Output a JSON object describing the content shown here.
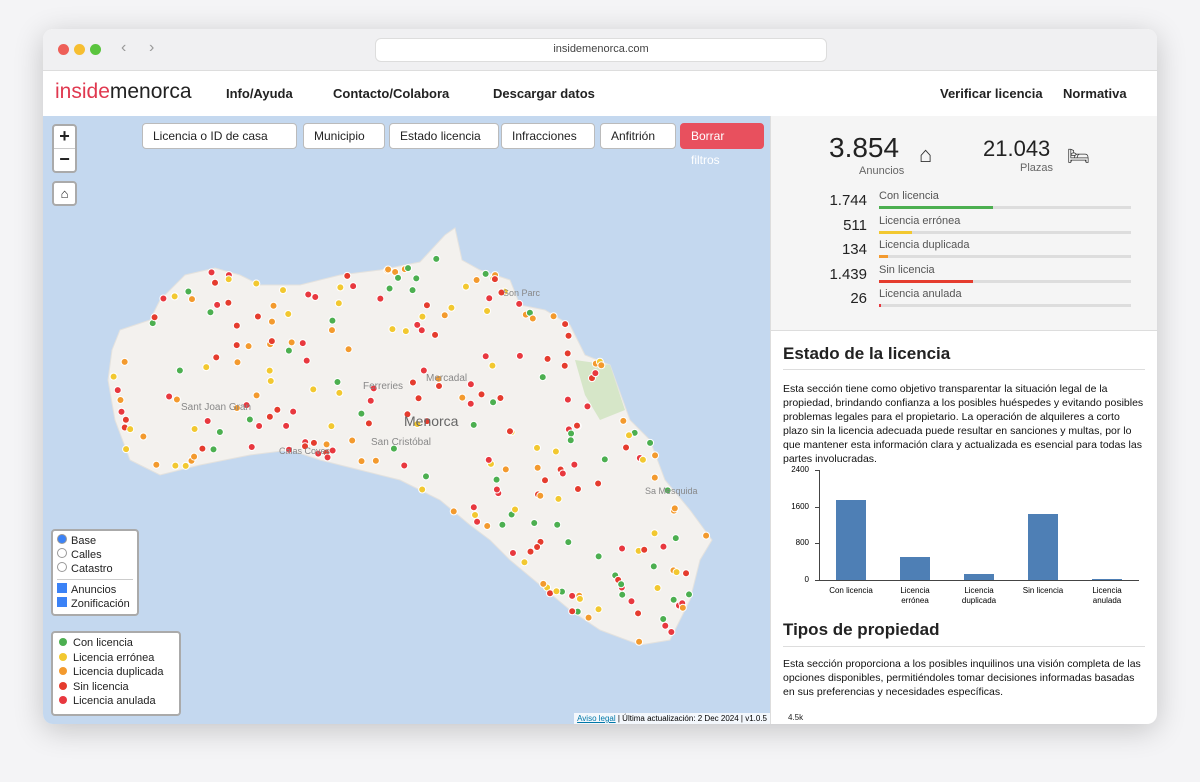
{
  "browser": {
    "url": "insidemenorca.com"
  },
  "nav": {
    "logo_a": "inside",
    "logo_b": "menorca",
    "links": [
      "Info/Ayuda",
      "Contacto/Colabora",
      "Descargar datos"
    ],
    "right_links": [
      "Verificar licencia",
      "Normativa"
    ]
  },
  "filters": {
    "search": "Licencia o ID de casa",
    "dropdowns": [
      "Municipio",
      "Estado licencia",
      "Infracciones",
      "Anfitrión"
    ],
    "clear": "Borrar filtros"
  },
  "map": {
    "zoom_in": "+",
    "zoom_out": "−",
    "places": [
      "Menorca",
      "Ferreries",
      "Mercadal",
      "Sant Joan Gran",
      "San Cristóbal",
      "Calas Coves",
      "Sa Mesquida",
      "Son Parc"
    ],
    "layers": {
      "base": [
        "Base",
        "Calles",
        "Catastro"
      ],
      "overlays": [
        "Anuncios",
        "Zonificación"
      ]
    },
    "legend": [
      {
        "label": "Con licencia",
        "color": "#4caf50"
      },
      {
        "label": "Licencia errónea",
        "color": "#f2c830"
      },
      {
        "label": "Licencia duplicada",
        "color": "#f39a2e"
      },
      {
        "label": "Sin licencia",
        "color": "#e53c2e"
      },
      {
        "label": "Licencia anulada",
        "color": "#e8383f"
      }
    ],
    "footer_link": "Aviso legal",
    "footer": "| Última actualización: 2 Dec 2024 | v1.0.5"
  },
  "stats": {
    "listings": {
      "value": 3854,
      "label": "3.854"
    },
    "listings_label": "Anuncios",
    "beds": {
      "value": 21043,
      "label": "21.043"
    },
    "beds_label": "Plazas",
    "rows": [
      {
        "value": {
          "value": 1744,
          "label": "1.744"
        },
        "name": "Con licencia",
        "color": "#4caf50"
      },
      {
        "value": 511,
        "name": "Licencia errónea",
        "color": "#f2c830"
      },
      {
        "value": 134,
        "name": "Licencia duplicada",
        "color": "#f39a2e"
      },
      {
        "value": {
          "value": 1439,
          "label": "1.439"
        },
        "name": "Sin licencia",
        "color": "#e53c2e"
      },
      {
        "value": 26,
        "name": "Licencia anulada",
        "color": "#e8383f"
      }
    ]
  },
  "section1": {
    "title": "Estado de la licencia",
    "text": "Esta sección tiene como objetivo transparentar la situación legal de la propiedad, brindando confianza a los posibles huéspedes y evitando posibles problemas legales para el propietario. La operación de alquileres a corto plazo sin la licencia adecuada puede resultar en sanciones y multas, por lo que mantener esta información clara y actualizada es esencial para todas las partes involucradas."
  },
  "status_chart": {
    "type": "bar",
    "categories": [
      "Con licencia",
      "Licencia errónea",
      "Licencia duplicada",
      "Sin licencia",
      "Licencia anulada"
    ],
    "values": [
      1744,
      511,
      134,
      1439,
      26
    ],
    "color": "#4e7fb5",
    "ylim": [
      0,
      2400
    ],
    "yticks": [
      0,
      800,
      1600,
      2400
    ]
  },
  "section2": {
    "title": "Tipos de propiedad",
    "text": "Esta sección proporciona a los posibles inquilinos una visión completa de las opciones disponibles, permitiéndoles tomar decisiones informadas basadas en sus preferencias y necesidades específicas.",
    "first_tick": "4.5k"
  }
}
